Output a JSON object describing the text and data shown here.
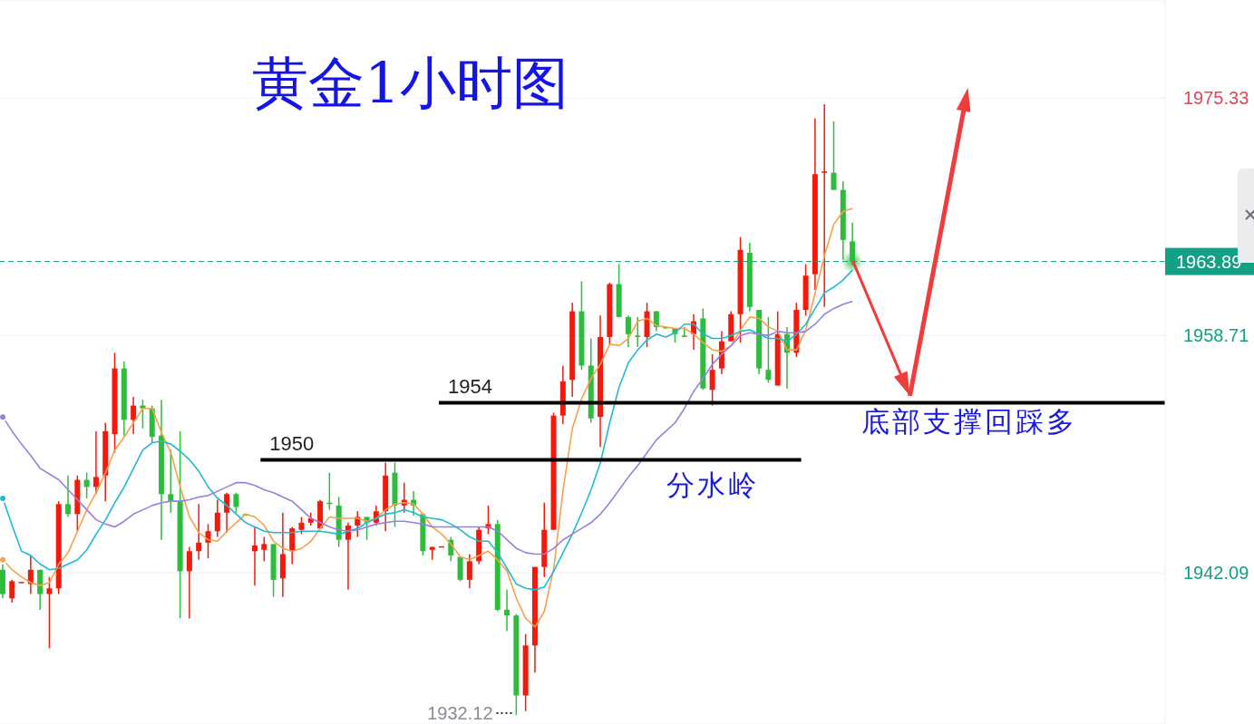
{
  "chart_data": {
    "type": "candlestick",
    "title": "黄金1小时图",
    "categories": [
      null,
      null,
      null,
      null,
      null,
      null,
      null,
      null,
      null,
      null,
      null,
      null,
      null,
      null,
      null,
      null,
      null,
      null,
      null,
      null,
      null,
      null,
      null,
      null,
      null,
      null,
      null,
      null,
      null,
      null,
      null,
      null,
      null,
      null,
      null,
      null,
      null,
      null,
      null,
      null,
      null,
      null,
      null,
      null,
      null,
      null,
      null,
      null,
      null,
      null,
      null,
      null,
      null,
      null,
      null,
      null,
      null,
      null,
      null,
      null,
      null,
      null,
      null,
      null,
      null,
      null,
      null,
      null,
      null,
      null,
      null,
      null,
      null,
      null,
      null,
      null,
      null,
      null,
      null,
      null,
      null,
      null,
      null,
      null,
      null,
      null,
      null,
      null,
      null,
      null,
      null,
      null
    ],
    "ohlc": [
      [
        1942.3,
        1942.7,
        1940.3,
        1940.6
      ],
      [
        1940.3,
        1941.6,
        1940.0,
        1941.5
      ],
      [
        1941.4,
        1941.4,
        1941.4,
        1941.4
      ],
      [
        1941.3,
        1943.3,
        1940.6,
        1942.3
      ],
      [
        1942.3,
        1942.3,
        1939.5,
        1940.6
      ],
      [
        1940.6,
        1941.8,
        1936.8,
        1941.0
      ],
      [
        1941.0,
        1947.1,
        1940.6,
        1946.9
      ],
      [
        1946.9,
        1948.9,
        1946.0,
        1946.2
      ],
      [
        1946.2,
        1948.9,
        1945.0,
        1948.6
      ],
      [
        1948.6,
        1949.1,
        1947.3,
        1948.1
      ],
      [
        1948.1,
        1952.0,
        1947.6,
        1948.8
      ],
      [
        1948.9,
        1952.6,
        1947.1,
        1952.0
      ],
      [
        1951.8,
        1957.5,
        1950.5,
        1956.4
      ],
      [
        1956.4,
        1956.9,
        1951.7,
        1952.8
      ],
      [
        1952.8,
        1954.4,
        1951.8,
        1953.8
      ],
      [
        1953.8,
        1954.2,
        1952.2,
        1953.6
      ],
      [
        1953.6,
        1953.8,
        1951.2,
        1951.6
      ],
      [
        1951.7,
        1954.2,
        1944.4,
        1947.6
      ],
      [
        1947.6,
        1950.7,
        1946.3,
        1947.1
      ],
      [
        1947.1,
        1952.0,
        1938.9,
        1942.2
      ],
      [
        1942.2,
        1943.9,
        1938.9,
        1943.6
      ],
      [
        1943.6,
        1946.9,
        1943.0,
        1944.2
      ],
      [
        1944.2,
        1945.5,
        1943.1,
        1945.0
      ],
      [
        1945.0,
        1947.2,
        1944.6,
        1946.3
      ],
      [
        1946.3,
        1947.7,
        1944.9,
        1947.6
      ],
      [
        1947.6,
        1947.7,
        1946.3,
        1946.7
      ],
      [
        1946.2,
        1946.2,
        1946.1,
        1946.1
      ],
      [
        1943.6,
        1945.3,
        1941.2,
        1944.0
      ],
      [
        1943.7,
        1944.6,
        1942.9,
        1944.1
      ],
      [
        1944.1,
        1944.1,
        1940.4,
        1941.6
      ],
      [
        1941.7,
        1946.3,
        1940.4,
        1943.4
      ],
      [
        1943.6,
        1945.3,
        1942.7,
        1945.2
      ],
      [
        1945.1,
        1946.0,
        1944.8,
        1945.6
      ],
      [
        1945.6,
        1946.3,
        1945.4,
        1945.9
      ],
      [
        1945.2,
        1947.2,
        1945.2,
        1947.1
      ],
      [
        1947.0,
        1949.1,
        1946.5,
        1946.9
      ],
      [
        1946.8,
        1947.4,
        1943.9,
        1944.4
      ],
      [
        1944.4,
        1945.6,
        1940.9,
        1945.4
      ],
      [
        1945.4,
        1946.4,
        1944.6,
        1946.0
      ],
      [
        1946.0,
        1946.0,
        1944.4,
        1945.6
      ],
      [
        1945.6,
        1946.8,
        1945.4,
        1946.4
      ],
      [
        1946.4,
        1949.8,
        1945.0,
        1948.9
      ],
      [
        1949.1,
        1949.8,
        1945.3,
        1946.8
      ],
      [
        1946.8,
        1948.4,
        1946.3,
        1947.2
      ],
      [
        1947.2,
        1947.8,
        1946.1,
        1946.8
      ],
      [
        1946.2,
        1946.2,
        1943.3,
        1943.6
      ],
      [
        1943.7,
        1943.9,
        1943.0,
        1943.9
      ],
      [
        1943.9,
        1943.9,
        1943.9,
        1943.9
      ],
      [
        1944.4,
        1944.6,
        1942.9,
        1943.3
      ],
      [
        1943.2,
        1943.2,
        1941.5,
        1941.6
      ],
      [
        1941.6,
        1943.4,
        1941.0,
        1942.9
      ],
      [
        1942.9,
        1945.3,
        1942.7,
        1945.1
      ],
      [
        1945.2,
        1946.8,
        1944.8,
        1945.5
      ],
      [
        1945.5,
        1945.8,
        1939.4,
        1939.5
      ],
      [
        1939.5,
        1940.9,
        1938.0,
        1939.1
      ],
      [
        1939.1,
        1939.2,
        1932.12,
        1933.5
      ],
      [
        1933.5,
        1937.8,
        1932.4,
        1937.0
      ],
      [
        1937.0,
        1942.5,
        1935.1,
        1942.5
      ],
      [
        1942.5,
        1947.0,
        1941.8,
        1945.1
      ],
      [
        1945.1,
        1953.3,
        1945.1,
        1953.1
      ],
      [
        1953.1,
        1956.6,
        1952.5,
        1955.5
      ],
      [
        1955.6,
        1961.0,
        1954.4,
        1960.4
      ],
      [
        1960.4,
        1962.5,
        1956.3,
        1956.6
      ],
      [
        1956.6,
        1958.5,
        1952.6,
        1952.9
      ],
      [
        1953.0,
        1960.1,
        1950.9,
        1958.6
      ],
      [
        1958.6,
        1962.4,
        1958.1,
        1962.3
      ],
      [
        1962.3,
        1963.7,
        1960.0,
        1960.0
      ],
      [
        1960.0,
        1960.1,
        1957.9,
        1958.8
      ],
      [
        1958.7,
        1960.0,
        1957.9,
        1958.6
      ],
      [
        1958.6,
        1961.0,
        1957.9,
        1960.4
      ],
      [
        1960.4,
        1960.4,
        1959.0,
        1959.3
      ],
      [
        1959.3,
        1959.3,
        1959.2,
        1959.2
      ],
      [
        1959.2,
        1959.2,
        1958.2,
        1958.8
      ],
      [
        1958.7,
        1959.3,
        1958.6,
        1958.6
      ],
      [
        1958.8,
        1960.2,
        1957.7,
        1959.7
      ],
      [
        1959.9,
        1960.6,
        1954.9,
        1955.0
      ],
      [
        1954.9,
        1957.4,
        1953.8,
        1956.3
      ],
      [
        1956.4,
        1959.0,
        1956.0,
        1958.3
      ],
      [
        1958.3,
        1960.4,
        1958.3,
        1960.2
      ],
      [
        1960.2,
        1965.6,
        1958.2,
        1964.7
      ],
      [
        1964.5,
        1965.2,
        1960.4,
        1960.7
      ],
      [
        1960.5,
        1960.5,
        1956.0,
        1956.4
      ],
      [
        1956.3,
        1960.0,
        1955.4,
        1955.6
      ],
      [
        1955.2,
        1960.4,
        1955.2,
        1958.8
      ],
      [
        1958.8,
        1959.3,
        1955.0,
        1957.5
      ],
      [
        1957.5,
        1961.0,
        1957.2,
        1960.5
      ],
      [
        1960.5,
        1963.7,
        1960.1,
        1962.9
      ],
      [
        1963.0,
        1973.9,
        1961.9,
        1970.0
      ],
      [
        1970.1,
        1974.9,
        1960.7,
        1970.2
      ],
      [
        1970.1,
        1973.7,
        1968.9,
        1968.9
      ],
      [
        1968.9,
        1969.5,
        1964.0,
        1965.4
      ],
      [
        1965.3,
        1966.6,
        1963.6,
        1963.89
      ]
    ],
    "colors": [
      "#2dbd3c",
      "#f5190b",
      "#f5190b",
      "#f5190b",
      "#2dbd3c",
      "#f5190b",
      "#f5190b",
      "#2dbd3c",
      "#f5190b",
      "#2dbd3c",
      "#f5190b",
      "#f5190b",
      "#f5190b",
      "#2dbd3c",
      "#f5190b",
      "#2dbd3c",
      "#2dbd3c",
      "#2dbd3c",
      "#2dbd3c",
      "#2dbd3c",
      "#f5190b",
      "#f5190b",
      "#f5190b",
      "#f5190b",
      "#f5190b",
      "#2dbd3c",
      "#2dbd3c",
      "#f5190b",
      "#f5190b",
      "#2dbd3c",
      "#f5190b",
      "#f5190b",
      "#f5190b",
      "#f5190b",
      "#f5190b",
      "#2dbd3c",
      "#2dbd3c",
      "#f5190b",
      "#f5190b",
      "#2dbd3c",
      "#f5190b",
      "#f5190b",
      "#2dbd3c",
      "#f5190b",
      "#2dbd3c",
      "#2dbd3c",
      "#f5190b",
      "#f5190b",
      "#2dbd3c",
      "#2dbd3c",
      "#f5190b",
      "#f5190b",
      "#f5190b",
      "#2dbd3c",
      "#2dbd3c",
      "#2dbd3c",
      "#f5190b",
      "#f5190b",
      "#f5190b",
      "#f5190b",
      "#f5190b",
      "#f5190b",
      "#2dbd3c",
      "#2dbd3c",
      "#f5190b",
      "#f5190b",
      "#2dbd3c",
      "#2dbd3c",
      "#2dbd3c",
      "#f5190b",
      "#2dbd3c",
      "#2dbd3c",
      "#2dbd3c",
      "#2dbd3c",
      "#f5190b",
      "#2dbd3c",
      "#f5190b",
      "#f5190b",
      "#f5190b",
      "#f5190b",
      "#2dbd3c",
      "#2dbd3c",
      "#2dbd3c",
      "#f5190b",
      "#2dbd3c",
      "#f5190b",
      "#f5190b",
      "#f5190b",
      "#f5190b",
      "#2dbd3c",
      "#2dbd3c",
      "#2dbd3c"
    ],
    "series": [
      {
        "type": "line",
        "color": "#f9a04a",
        "values": [
          1943.0,
          1942.3,
          1941.8,
          1941.4,
          1941.2,
          1941.4,
          1942.7,
          1943.5,
          1945.0,
          1946.5,
          1947.7,
          1949.1,
          1950.7,
          1951.6,
          1952.6,
          1953.6,
          1953.6,
          1951.9,
          1950.5,
          1948.1,
          1946.0,
          1944.9,
          1944.4,
          1944.3,
          1945.0,
          1945.6,
          1946.2,
          1946.0,
          1945.4,
          1944.3,
          1943.8,
          1943.6,
          1943.8,
          1944.3,
          1945.2,
          1946.0,
          1945.9,
          1945.9,
          1945.9,
          1945.7,
          1945.9,
          1946.5,
          1946.9,
          1947.0,
          1946.9,
          1946.2,
          1945.3,
          1944.8,
          1944.1,
          1943.2,
          1943.0,
          1943.3,
          1943.6,
          1943.0,
          1942.2,
          1940.3,
          1938.9,
          1938.3,
          1939.4,
          1942.4,
          1947.9,
          1952.2,
          1954.3,
          1955.7,
          1956.7,
          1958.1,
          1958.0,
          1958.5,
          1959.7,
          1959.9,
          1959.4,
          1959.3,
          1959.2,
          1959.2,
          1958.8,
          1958.2,
          1957.7,
          1957.6,
          1958.0,
          1959.1,
          1960.0,
          1959.9,
          1959.3,
          1959.0,
          1957.7,
          1957.7,
          1959.1,
          1961.7,
          1964.3,
          1966.5,
          1967.4,
          1967.6
        ]
      },
      {
        "type": "line",
        "color": "#1fb9d6",
        "values": [
          1947.3,
          1945.4,
          1943.6,
          1943.3,
          1942.7,
          1942.3,
          1942.4,
          1942.7,
          1943.0,
          1943.7,
          1944.8,
          1945.8,
          1947.0,
          1948.1,
          1949.4,
          1950.7,
          1951.2,
          1951.3,
          1951.1,
          1950.6,
          1950.0,
          1949.2,
          1948.1,
          1947.3,
          1946.8,
          1946.2,
          1945.6,
          1945.3,
          1945.0,
          1944.9,
          1944.9,
          1944.9,
          1945.0,
          1945.0,
          1945.0,
          1944.9,
          1944.8,
          1945.0,
          1945.2,
          1945.6,
          1945.9,
          1946.2,
          1946.3,
          1946.5,
          1946.3,
          1946.0,
          1945.9,
          1945.8,
          1945.5,
          1945.1,
          1944.6,
          1944.3,
          1944.3,
          1943.5,
          1942.4,
          1941.3,
          1941.0,
          1940.9,
          1941.1,
          1942.2,
          1943.5,
          1944.8,
          1946.3,
          1947.9,
          1949.8,
          1952.6,
          1955.1,
          1956.8,
          1957.7,
          1958.4,
          1958.8,
          1958.6,
          1958.9,
          1959.5,
          1959.5,
          1958.8,
          1958.5,
          1958.5,
          1958.7,
          1959.0,
          1959.1,
          1958.8,
          1958.5,
          1958.5,
          1958.3,
          1958.8,
          1959.5,
          1960.6,
          1961.7,
          1962.1,
          1962.6,
          1963.3
        ]
      },
      {
        "type": "line",
        "color": "#9b7ee0",
        "values": [
          1953.0,
          1952.0,
          1951.1,
          1950.3,
          1949.4,
          1949.0,
          1948.6,
          1947.9,
          1947.2,
          1946.5,
          1945.8,
          1945.5,
          1945.3,
          1945.7,
          1946.2,
          1946.5,
          1946.8,
          1947.0,
          1947.1,
          1947.1,
          1947.2,
          1947.4,
          1947.5,
          1947.8,
          1948.1,
          1948.4,
          1948.4,
          1948.2,
          1947.9,
          1947.7,
          1947.4,
          1947.1,
          1946.5,
          1945.9,
          1945.6,
          1945.3,
          1945.1,
          1945.0,
          1945.1,
          1945.3,
          1945.5,
          1945.6,
          1945.7,
          1945.7,
          1945.6,
          1945.5,
          1945.3,
          1945.3,
          1945.3,
          1945.3,
          1945.3,
          1945.3,
          1945.3,
          1945.0,
          1944.4,
          1943.8,
          1943.5,
          1943.4,
          1943.4,
          1943.8,
          1944.4,
          1944.8,
          1945.2,
          1945.6,
          1946.2,
          1947.0,
          1947.9,
          1948.8,
          1949.6,
          1950.5,
          1951.4,
          1952.0,
          1952.6,
          1953.6,
          1954.8,
          1955.7,
          1956.7,
          1957.4,
          1958.0,
          1958.7,
          1958.9,
          1958.8,
          1958.7,
          1959.0,
          1958.9,
          1958.9,
          1959.0,
          1959.5,
          1960.2,
          1960.6,
          1960.9,
          1961.1
        ]
      }
    ],
    "ylim": [
      1931.5,
      1982.2
    ],
    "yticks": [
      1942.09,
      1958.71,
      1975.33
    ],
    "grid": "y",
    "tick_labels": "y",
    "marker": "none",
    "ref_lines": [
      {
        "axis": "y",
        "value": 1963.89,
        "label": "1963.89",
        "color": "#14a085",
        "line_style": "dashed"
      },
      {
        "axis": "y",
        "value": 1954,
        "label": "1954",
        "color": "#000000"
      },
      {
        "axis": "y",
        "value": 1950,
        "label": "1950",
        "color": "#000000"
      }
    ],
    "annotations": [
      "底部支撑回踩多",
      "分水岭",
      "1932.12"
    ]
  }
}
